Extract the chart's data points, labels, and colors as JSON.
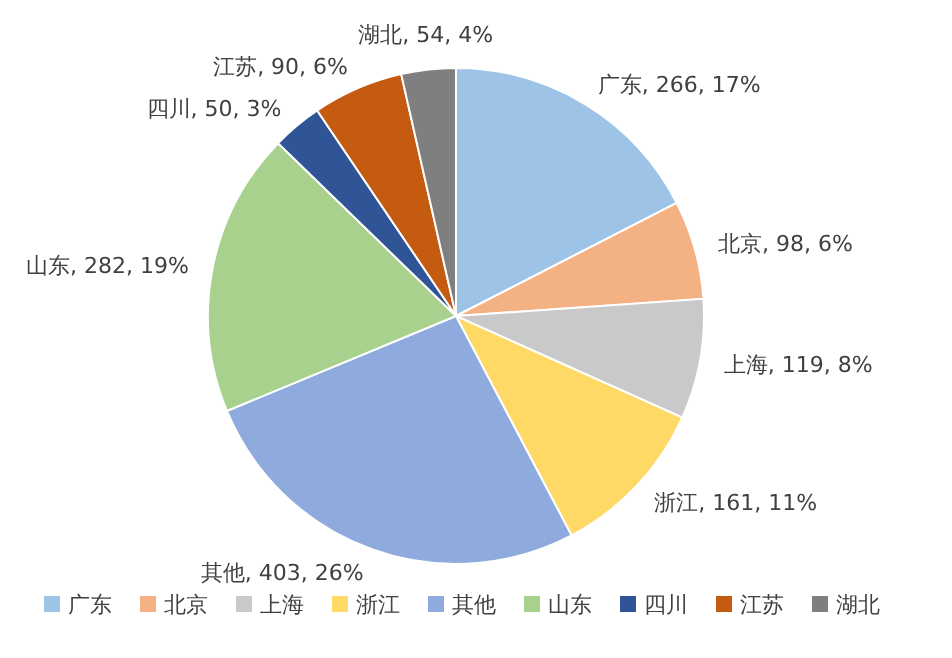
{
  "chart_data": {
    "type": "pie",
    "categories": [
      "广东",
      "北京",
      "上海",
      "浙江",
      "其他",
      "山东",
      "四川",
      "江苏",
      "湖北"
    ],
    "values": [
      266,
      98,
      119,
      161,
      403,
      282,
      50,
      90,
      54
    ],
    "colors": [
      "#9dc3e6",
      "#f4b183",
      "#c9c9c9",
      "#ffd966",
      "#8faadc",
      "#a9d18e",
      "#2f5597",
      "#c55a11",
      "#7f7f7f"
    ],
    "value_labels": [
      "广东, 266, 17%",
      "北京, 98, 6%",
      "上海, 119, 8%",
      "浙江, 161, 11%",
      "其他, 403, 26%",
      "山东, 282, 19%",
      "四川, 50, 3%",
      "江苏, 90, 6%",
      "湖北, 54, 4%"
    ],
    "legend": "bottom"
  }
}
